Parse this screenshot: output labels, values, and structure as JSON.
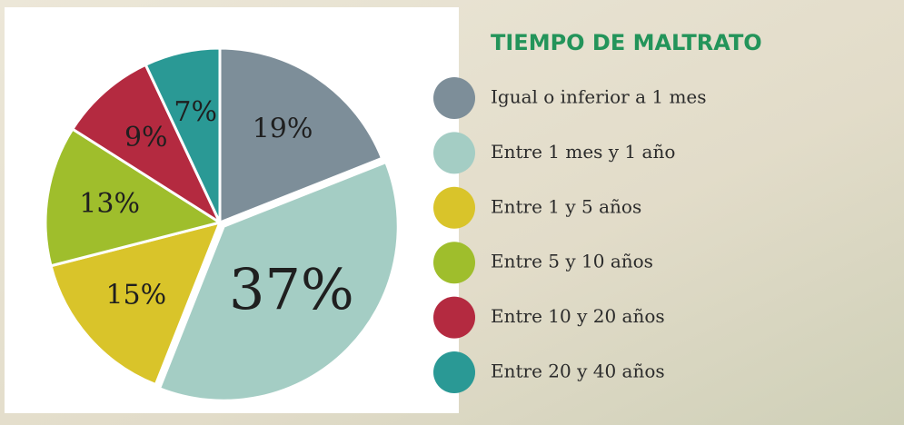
{
  "chart_data": {
    "type": "pie",
    "title": "TIEMPO DE MALTRATO",
    "categories": [
      "Igual o inferior a 1 mes",
      "Entre 1 mes y 1 año",
      "Entre 1 y 5 años",
      "Entre 5 y 10 años",
      "Entre 10 y 20 años",
      "Entre 20 y 40 años"
    ],
    "values": [
      19,
      37,
      15,
      13,
      9,
      7
    ],
    "value_labels": [
      "19%",
      "37%",
      "15%",
      "13%",
      "9%",
      "7%"
    ],
    "colors": [
      "#7d8e99",
      "#a4cdc4",
      "#d9c42a",
      "#9fbe2c",
      "#b42a40",
      "#2a9995"
    ]
  }
}
